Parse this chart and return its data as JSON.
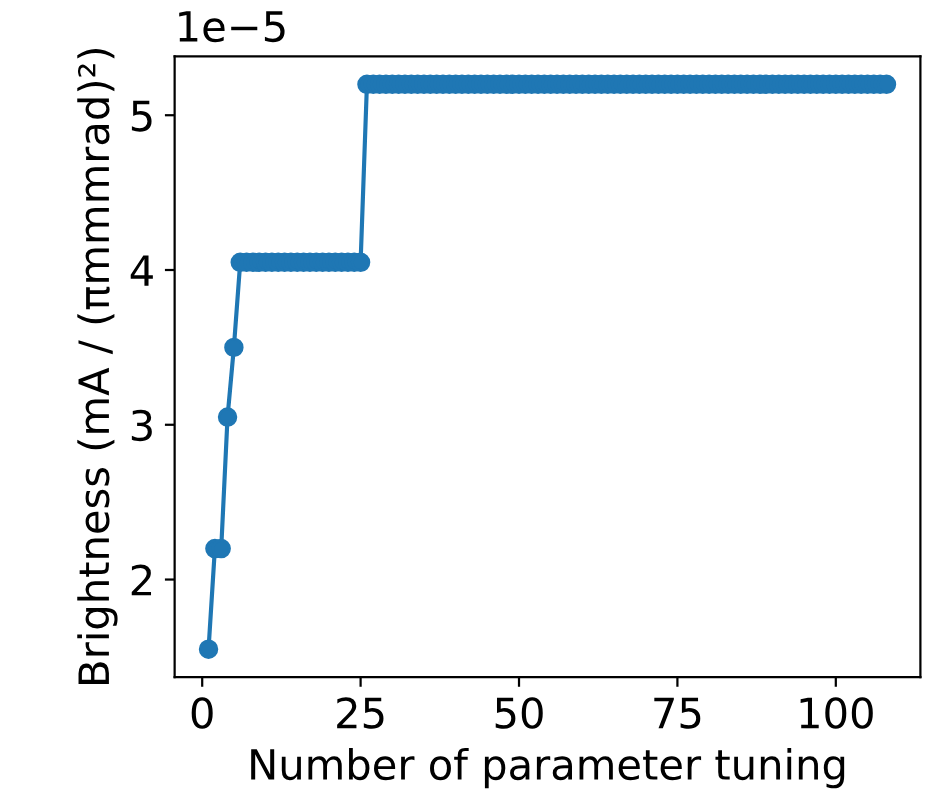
{
  "chart_data": {
    "type": "line",
    "xlabel": "Number of parameter tuning",
    "ylabel": "Brightness (mA / (πmmmrad)²)",
    "annotations": [
      "1e−5"
    ],
    "x": [
      1,
      2,
      3,
      4,
      5,
      6,
      7,
      8,
      9,
      10,
      11,
      12,
      13,
      14,
      15,
      16,
      17,
      18,
      19,
      20,
      21,
      22,
      23,
      24,
      25,
      26,
      27,
      28,
      29,
      30,
      31,
      32,
      33,
      34,
      35,
      36,
      37,
      38,
      39,
      40,
      41,
      42,
      43,
      44,
      45,
      46,
      47,
      48,
      49,
      50,
      51,
      52,
      53,
      54,
      55,
      56,
      57,
      58,
      59,
      60,
      61,
      62,
      63,
      64,
      65,
      66,
      67,
      68,
      69,
      70,
      71,
      72,
      73,
      74,
      75,
      76,
      77,
      78,
      79,
      80,
      81,
      82,
      83,
      84,
      85,
      86,
      87,
      88,
      89,
      90,
      91,
      92,
      93,
      94,
      95,
      96,
      97,
      98,
      99,
      100,
      101,
      102,
      103,
      104,
      105,
      106,
      107,
      108
    ],
    "series": [
      {
        "color": "#1f77b4",
        "values": [
          1.55,
          2.2,
          2.2,
          3.05,
          3.5,
          4.05,
          4.05,
          4.05,
          4.05,
          4.05,
          4.05,
          4.05,
          4.05,
          4.05,
          4.05,
          4.05,
          4.05,
          4.05,
          4.05,
          4.05,
          4.05,
          4.05,
          4.05,
          4.05,
          4.05,
          5.2,
          5.2,
          5.2,
          5.2,
          5.2,
          5.2,
          5.2,
          5.2,
          5.2,
          5.2,
          5.2,
          5.2,
          5.2,
          5.2,
          5.2,
          5.2,
          5.2,
          5.2,
          5.2,
          5.2,
          5.2,
          5.2,
          5.2,
          5.2,
          5.2,
          5.2,
          5.2,
          5.2,
          5.2,
          5.2,
          5.2,
          5.2,
          5.2,
          5.2,
          5.2,
          5.2,
          5.2,
          5.2,
          5.2,
          5.2,
          5.2,
          5.2,
          5.2,
          5.2,
          5.2,
          5.2,
          5.2,
          5.2,
          5.2,
          5.2,
          5.2,
          5.2,
          5.2,
          5.2,
          5.2,
          5.2,
          5.2,
          5.2,
          5.2,
          5.2,
          5.2,
          5.2,
          5.2,
          5.2,
          5.2,
          5.2,
          5.2,
          5.2,
          5.2,
          5.2,
          5.2,
          5.2,
          5.2,
          5.2,
          5.2,
          5.2,
          5.2,
          5.2,
          5.2,
          5.2,
          5.2,
          5.2,
          5.2
        ]
      }
    ],
    "xlim": [
      -4.35,
      113.35
    ],
    "xticks": [
      0,
      25,
      50,
      75,
      100
    ],
    "ylim": [
      1.37,
      5.38
    ],
    "yticks": [
      2,
      3,
      4,
      5
    ],
    "marker": "circle",
    "line_style": "solid"
  }
}
